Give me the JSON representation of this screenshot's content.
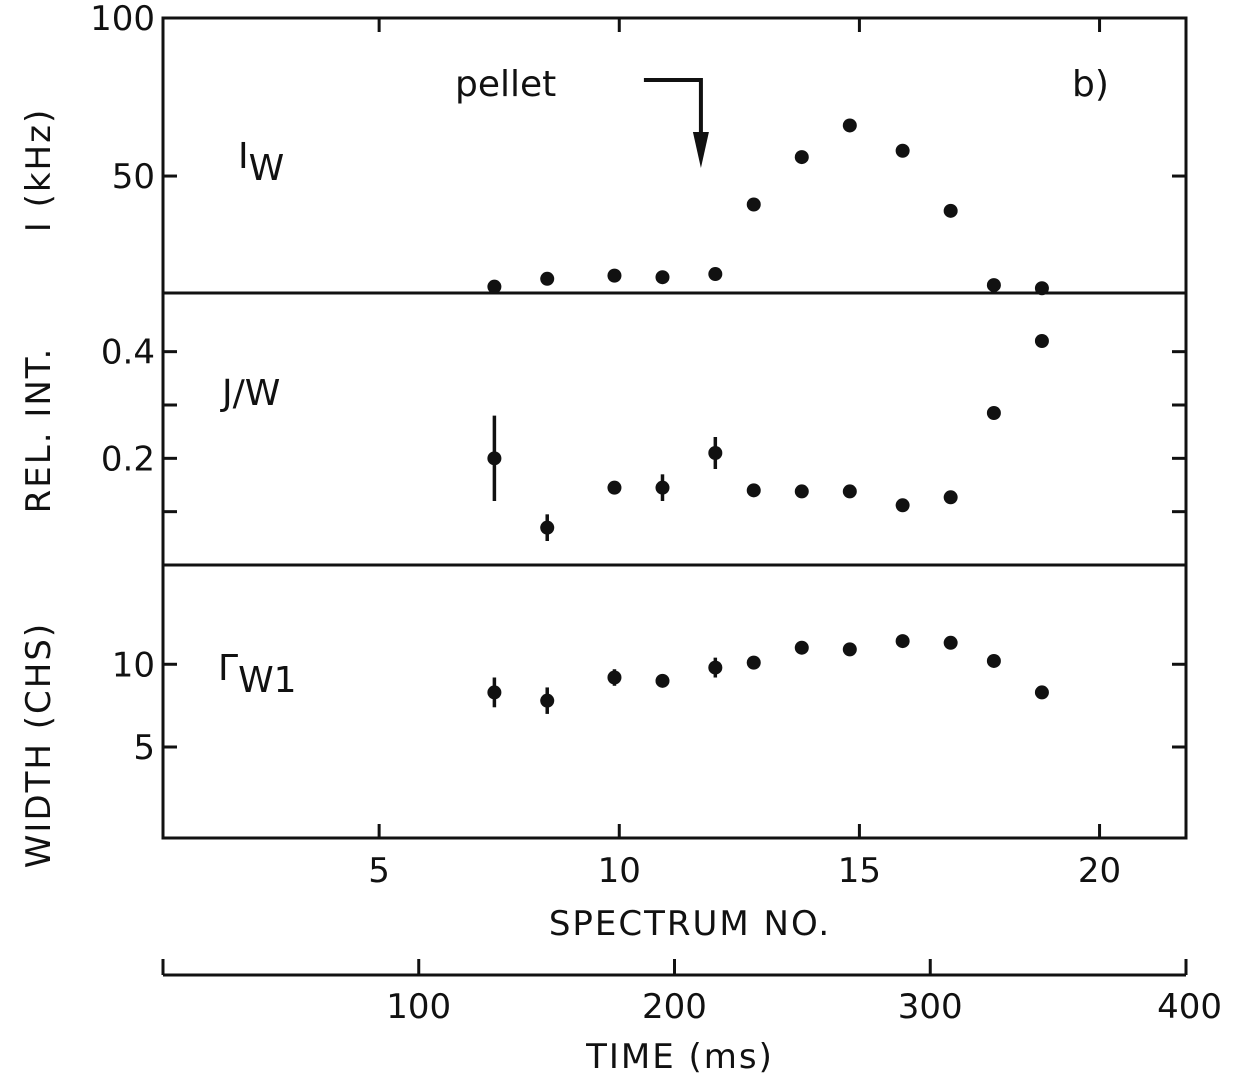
{
  "chart_data": {
    "type": "scatter",
    "panel_label": "b)",
    "x_axis": {
      "label": "SPECTRUM NO.",
      "ticks": [
        5,
        10,
        15,
        20
      ],
      "tick_labels": [
        "5",
        "10",
        "15",
        "20"
      ],
      "range": [
        0.5,
        21.8
      ]
    },
    "x2_axis": {
      "label": "TIME (ms)",
      "ticks": [
        100,
        200,
        300,
        400
      ],
      "tick_labels": [
        "100",
        "200",
        "300",
        "400"
      ],
      "range": [
        0,
        400
      ]
    },
    "ylabel_parts": [
      "WIDTH (CHS)",
      "REL. INT.",
      "I (kHz)"
    ],
    "annotation": {
      "text": "pellet",
      "x": 11.7
    },
    "panels": [
      {
        "label_main": "I",
        "label_sub": "W",
        "ticks": [
          50,
          100
        ],
        "tick_labels": [
          "50",
          "100"
        ],
        "ylim": [
          13,
          100
        ],
        "points": [
          {
            "x": 7.4,
            "y": 15
          },
          {
            "x": 8.5,
            "y": 17.5
          },
          {
            "x": 9.9,
            "y": 18.5
          },
          {
            "x": 10.9,
            "y": 18
          },
          {
            "x": 12.0,
            "y": 19
          },
          {
            "x": 12.8,
            "y": 41
          },
          {
            "x": 13.8,
            "y": 56
          },
          {
            "x": 14.8,
            "y": 66
          },
          {
            "x": 15.9,
            "y": 58
          },
          {
            "x": 16.9,
            "y": 39
          },
          {
            "x": 17.8,
            "y": 15.5
          },
          {
            "x": 18.8,
            "y": 14.5
          }
        ]
      },
      {
        "label_main": "J/W",
        "label_sub": "",
        "ticks": [
          0.2,
          0.4
        ],
        "tick_labels": [
          "0.2",
          "0.4"
        ],
        "minor_ticks": [
          0.1,
          0.3
        ],
        "ylim": [
          0.0,
          0.51
        ],
        "points": [
          {
            "x": 7.4,
            "y": 0.2,
            "err": 0.08
          },
          {
            "x": 8.5,
            "y": 0.07,
            "err": 0.025
          },
          {
            "x": 9.9,
            "y": 0.145
          },
          {
            "x": 10.9,
            "y": 0.145,
            "err": 0.025
          },
          {
            "x": 12.0,
            "y": 0.21,
            "err": 0.03
          },
          {
            "x": 12.8,
            "y": 0.14
          },
          {
            "x": 13.8,
            "y": 0.138
          },
          {
            "x": 14.8,
            "y": 0.138
          },
          {
            "x": 15.9,
            "y": 0.112
          },
          {
            "x": 16.9,
            "y": 0.127
          },
          {
            "x": 17.8,
            "y": 0.285
          },
          {
            "x": 18.8,
            "y": 0.42
          }
        ]
      },
      {
        "label_main": "Γ",
        "label_sub": "W1",
        "ticks": [
          5,
          10
        ],
        "tick_labels": [
          "5",
          "10"
        ],
        "ylim": [
          -0.5,
          16
        ],
        "points": [
          {
            "x": 7.4,
            "y": 8.3,
            "err": 0.9
          },
          {
            "x": 8.5,
            "y": 7.8,
            "err": 0.8
          },
          {
            "x": 9.9,
            "y": 9.2,
            "err": 0.5
          },
          {
            "x": 10.9,
            "y": 9.0
          },
          {
            "x": 12.0,
            "y": 9.8,
            "err": 0.6
          },
          {
            "x": 12.8,
            "y": 10.1
          },
          {
            "x": 13.8,
            "y": 11.0
          },
          {
            "x": 14.8,
            "y": 10.9
          },
          {
            "x": 15.9,
            "y": 11.4
          },
          {
            "x": 16.9,
            "y": 11.3
          },
          {
            "x": 17.8,
            "y": 10.2
          },
          {
            "x": 18.8,
            "y": 8.3
          }
        ]
      }
    ]
  }
}
